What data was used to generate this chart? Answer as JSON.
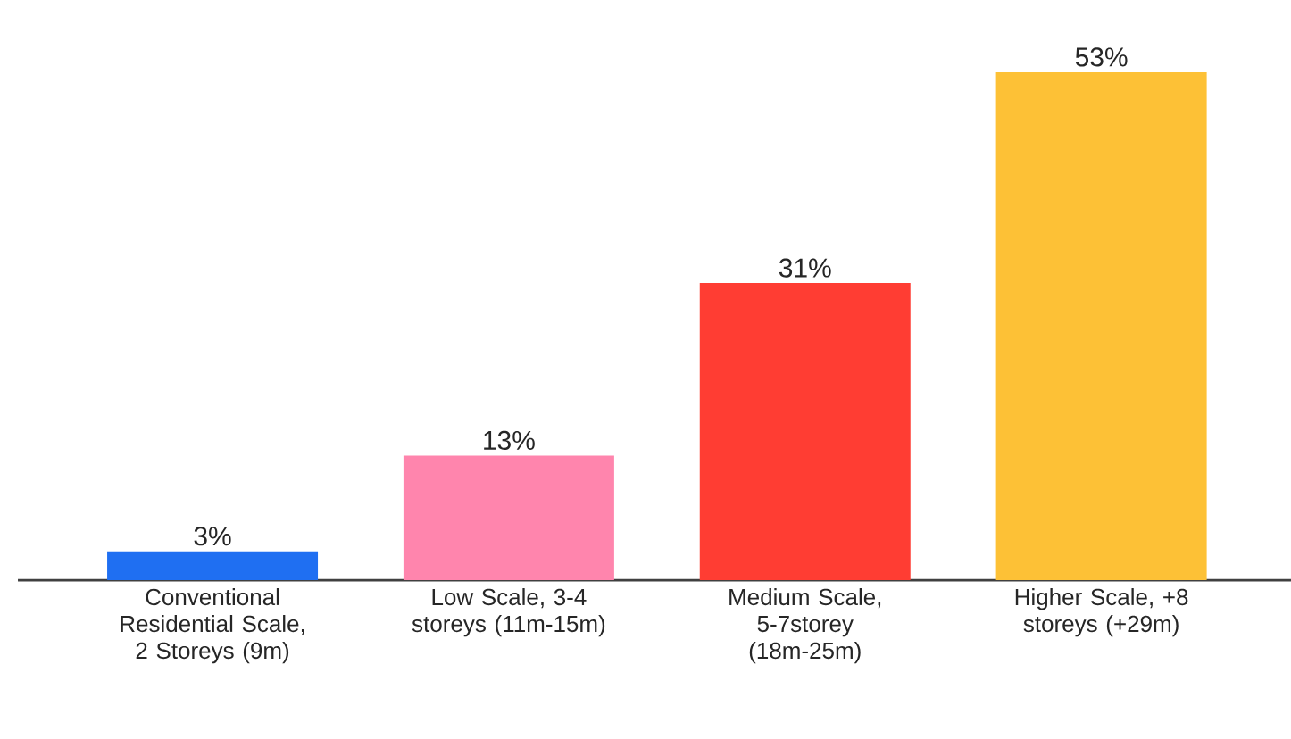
{
  "chart_data": {
    "type": "bar",
    "categories": [
      "Conventional Residential Scale, 2 Storeys (9m)",
      "Low Scale, 3-4 storeys (11m-15m)",
      "Medium Scale, 5-7storey (18m-25m)",
      "Higher Scale, +8 storeys (+29m)"
    ],
    "values": [
      3,
      13,
      31,
      53
    ],
    "colors": [
      "#1f6ff2",
      "#ff85ad",
      "#ff3d33",
      "#fdc136"
    ],
    "value_labels": [
      "3%",
      "13%",
      "31%",
      "53%"
    ]
  }
}
